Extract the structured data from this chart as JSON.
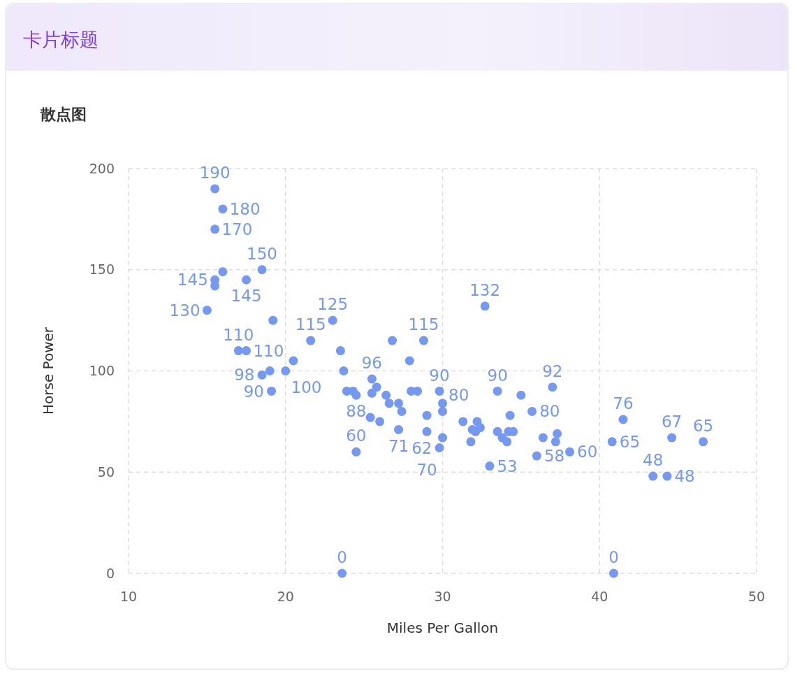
{
  "chart_data": {
    "type": "scatter",
    "title": "卡片标题",
    "subtitle": "散点图",
    "xlabel": "Miles Per Gallon",
    "ylabel": "Horse Power",
    "x": [
      15.5,
      16.0,
      15.5,
      16.0,
      15.5,
      15.5,
      17.5,
      18.5,
      15.0,
      19.2,
      17.0,
      17.5,
      18.5,
      19.0,
      20.0,
      19.1,
      20.5,
      21.6,
      23.0,
      23.5,
      23.7,
      23.9,
      24.3,
      24.5,
      25.5,
      25.8,
      25.5,
      25.4,
      26.0,
      26.4,
      26.6,
      26.8,
      27.2,
      27.4,
      27.2,
      27.9,
      28.0,
      28.4,
      28.8,
      29.0,
      29.0,
      29.8,
      30.0,
      30.0,
      30.0,
      29.8,
      24.5,
      31.3,
      32.7,
      31.9,
      31.8,
      32.1,
      32.2,
      32.4,
      33.0,
      33.5,
      33.5,
      33.8,
      34.1,
      34.3,
      34.2,
      34.5,
      35.0,
      35.7,
      37.0,
      36.0,
      36.4,
      37.3,
      37.2,
      38.1,
      40.8,
      41.5,
      43.4,
      44.3,
      44.6,
      46.6,
      23.6,
      40.9
    ],
    "series": [
      {
        "color": "#7598f2",
        "values": [
          190,
          180,
          170,
          149,
          145,
          142,
          145,
          150,
          130,
          125,
          110,
          110,
          98,
          100,
          100,
          90,
          105,
          115,
          125,
          110,
          100,
          90,
          90,
          88,
          96,
          92,
          89,
          77,
          75,
          88,
          84,
          115,
          84,
          80,
          71,
          105,
          90,
          90,
          115,
          78,
          70,
          90,
          84,
          80,
          67,
          62,
          60,
          75,
          132,
          71,
          65,
          70,
          75,
          72,
          53,
          90,
          70,
          67,
          65,
          78,
          70,
          70,
          88,
          80,
          92,
          58,
          67,
          69,
          65,
          60,
          65,
          76,
          48,
          48,
          67,
          65,
          0,
          0
        ],
        "value_labels": [
          "190",
          "180",
          "170",
          null,
          "145",
          null,
          "145",
          "150",
          "130",
          null,
          "110",
          "110",
          "98",
          null,
          "100",
          "90",
          null,
          "115",
          "125",
          null,
          null,
          null,
          null,
          "88",
          "96",
          null,
          null,
          null,
          null,
          null,
          null,
          null,
          null,
          null,
          "71",
          null,
          null,
          null,
          "115",
          null,
          "70",
          "90",
          null,
          "80",
          null,
          "62",
          "60",
          null,
          "132",
          null,
          null,
          null,
          null,
          null,
          "53",
          "90",
          null,
          null,
          null,
          null,
          null,
          null,
          null,
          "80",
          "92",
          "58",
          null,
          null,
          null,
          "60",
          "65",
          "76",
          "48",
          "48",
          "67",
          "65",
          "0",
          "0"
        ]
      }
    ],
    "xlim": [
      10,
      50
    ],
    "xticks": [
      10,
      20,
      30,
      40,
      50
    ],
    "ylim": [
      0,
      200
    ],
    "yticks": [
      0,
      50,
      100,
      150,
      200
    ],
    "grid": true,
    "marker": "circle"
  }
}
